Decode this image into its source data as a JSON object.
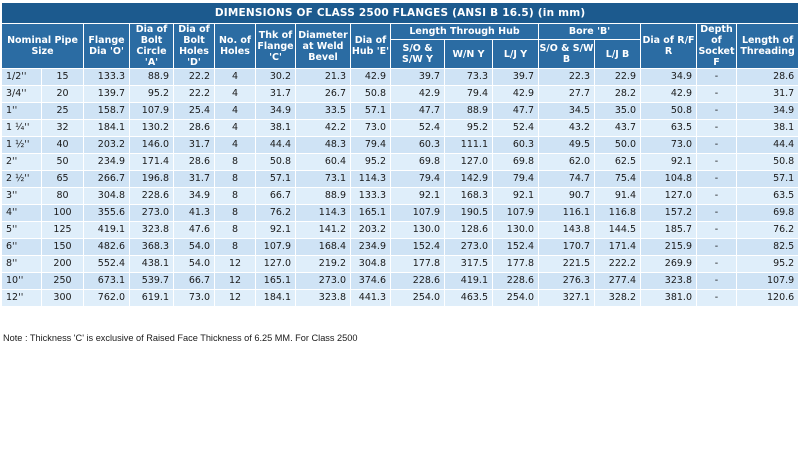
{
  "title": "DIMENSIONS OF CLASS 2500 FLANGES (ANSI B 16.5) (in mm)",
  "headers": {
    "nominal_pipe_size": "Nominal Pipe Size",
    "flange_dia": "Flange Dia 'O'",
    "dia_bolt_circle": "Dia of Bolt Circle 'A'",
    "dia_bolt_holes": "Dia of Bolt Holes 'D'",
    "no_of_holes": "No. of Holes",
    "thk_of_flange": "Thk of Flange 'C'",
    "diameter_weld_bevel": "Diameter at Weld Bevel",
    "dia_of_hub": "Dia of Hub 'E'",
    "length_through_hub": "Length Through Hub",
    "lth_so_sw": "S/O & S/W Y",
    "lth_wn": "W/N Y",
    "lth_lj": "L/J Y",
    "bore": "Bore 'B'",
    "bore_so_sw": "S/O & S/W B",
    "bore_lj": "L/J B",
    "dia_rf": "Dia of R/F R",
    "depth_socket": "Depth of Socket F",
    "length_threading": "Length of Threading"
  },
  "rows": [
    [
      "1/2''",
      "15",
      "133.3",
      "88.9",
      "22.2",
      "4",
      "30.2",
      "21.3",
      "42.9",
      "39.7",
      "73.3",
      "39.7",
      "22.3",
      "22.9",
      "34.9",
      "-",
      "28.6"
    ],
    [
      "3/4''",
      "20",
      "139.7",
      "95.2",
      "22.2",
      "4",
      "31.7",
      "26.7",
      "50.8",
      "42.9",
      "79.4",
      "42.9",
      "27.7",
      "28.2",
      "42.9",
      "-",
      "31.7"
    ],
    [
      "1''",
      "25",
      "158.7",
      "107.9",
      "25.4",
      "4",
      "34.9",
      "33.5",
      "57.1",
      "47.7",
      "88.9",
      "47.7",
      "34.5",
      "35.0",
      "50.8",
      "-",
      "34.9"
    ],
    [
      "1 ¼''",
      "32",
      "184.1",
      "130.2",
      "28.6",
      "4",
      "38.1",
      "42.2",
      "73.0",
      "52.4",
      "95.2",
      "52.4",
      "43.2",
      "43.7",
      "63.5",
      "-",
      "38.1"
    ],
    [
      "1 ½''",
      "40",
      "203.2",
      "146.0",
      "31.7",
      "4",
      "44.4",
      "48.3",
      "79.4",
      "60.3",
      "111.1",
      "60.3",
      "49.5",
      "50.0",
      "73.0",
      "-",
      "44.4"
    ],
    [
      "2''",
      "50",
      "234.9",
      "171.4",
      "28.6",
      "8",
      "50.8",
      "60.4",
      "95.2",
      "69.8",
      "127.0",
      "69.8",
      "62.0",
      "62.5",
      "92.1",
      "-",
      "50.8"
    ],
    [
      "2 ½''",
      "65",
      "266.7",
      "196.8",
      "31.7",
      "8",
      "57.1",
      "73.1",
      "114.3",
      "79.4",
      "142.9",
      "79.4",
      "74.7",
      "75.4",
      "104.8",
      "-",
      "57.1"
    ],
    [
      "3''",
      "80",
      "304.8",
      "228.6",
      "34.9",
      "8",
      "66.7",
      "88.9",
      "133.3",
      "92.1",
      "168.3",
      "92.1",
      "90.7",
      "91.4",
      "127.0",
      "-",
      "63.5"
    ],
    [
      "4''",
      "100",
      "355.6",
      "273.0",
      "41.3",
      "8",
      "76.2",
      "114.3",
      "165.1",
      "107.9",
      "190.5",
      "107.9",
      "116.1",
      "116.8",
      "157.2",
      "-",
      "69.8"
    ],
    [
      "5''",
      "125",
      "419.1",
      "323.8",
      "47.6",
      "8",
      "92.1",
      "141.2",
      "203.2",
      "130.0",
      "128.6",
      "130.0",
      "143.8",
      "144.5",
      "185.7",
      "-",
      "76.2"
    ],
    [
      "6''",
      "150",
      "482.6",
      "368.3",
      "54.0",
      "8",
      "107.9",
      "168.4",
      "234.9",
      "152.4",
      "273.0",
      "152.4",
      "170.7",
      "171.4",
      "215.9",
      "-",
      "82.5"
    ],
    [
      "8''",
      "200",
      "552.4",
      "438.1",
      "54.0",
      "12",
      "127.0",
      "219.2",
      "304.8",
      "177.8",
      "317.5",
      "177.8",
      "221.5",
      "222.2",
      "269.9",
      "-",
      "95.2"
    ],
    [
      "10''",
      "250",
      "673.1",
      "539.7",
      "66.7",
      "12",
      "165.1",
      "273.0",
      "374.6",
      "228.6",
      "419.1",
      "228.6",
      "276.3",
      "277.4",
      "323.8",
      "-",
      "107.9"
    ],
    [
      "12''",
      "300",
      "762.0",
      "619.1",
      "73.0",
      "12",
      "184.1",
      "323.8",
      "441.3",
      "254.0",
      "463.5",
      "254.0",
      "327.1",
      "328.2",
      "381.0",
      "-",
      "120.6"
    ]
  ],
  "note": "Note : Thickness 'C' is exclusive of Raised Face Thickness of 6.25 MM. For Class 2500",
  "colors": {
    "title_bg": "#1c5a8e",
    "header_bg": "#2b6ca3",
    "row_bg_a": "#cfe3f5",
    "row_bg_b": "#dfeefa"
  }
}
